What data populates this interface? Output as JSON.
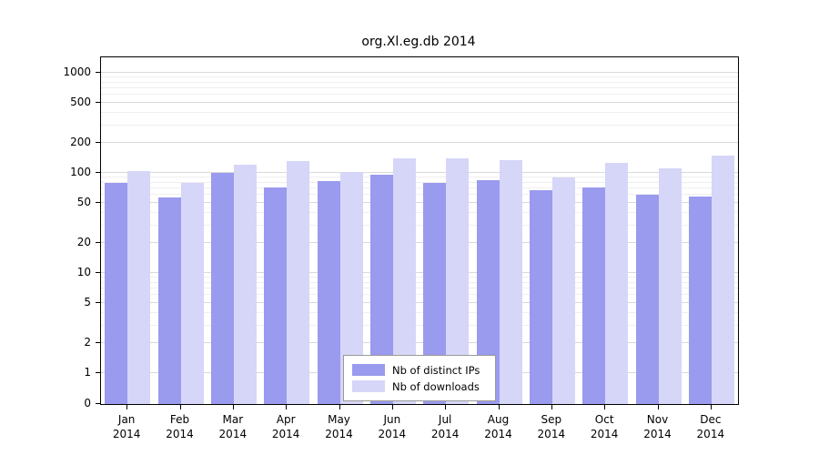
{
  "title": "org.Xl.eg.db 2014",
  "chart_data": {
    "type": "bar",
    "title": "org.Xl.eg.db 2014",
    "categories": [
      "Jan",
      "Feb",
      "Mar",
      "Apr",
      "May",
      "Jun",
      "Jul",
      "Aug",
      "Sep",
      "Oct",
      "Nov",
      "Dec"
    ],
    "x_year": "2014",
    "series": [
      {
        "name": "Nb of distinct IPs",
        "color": "#9a9aee",
        "values": [
          80,
          57,
          100,
          72,
          82,
          95,
          80,
          85,
          67,
          72,
          60,
          58
        ]
      },
      {
        "name": "Nb of downloads",
        "color": "#d6d6f8",
        "values": [
          105,
          80,
          120,
          132,
          103,
          140,
          140,
          135,
          90,
          125,
          110,
          150
        ]
      }
    ],
    "y_scale": "log",
    "y_ticks": [
      0,
      1,
      2,
      5,
      10,
      20,
      50,
      100,
      200,
      500,
      1000
    ],
    "ylim": [
      0,
      1000
    ],
    "grid": true,
    "legend_position": "bottom-center"
  }
}
